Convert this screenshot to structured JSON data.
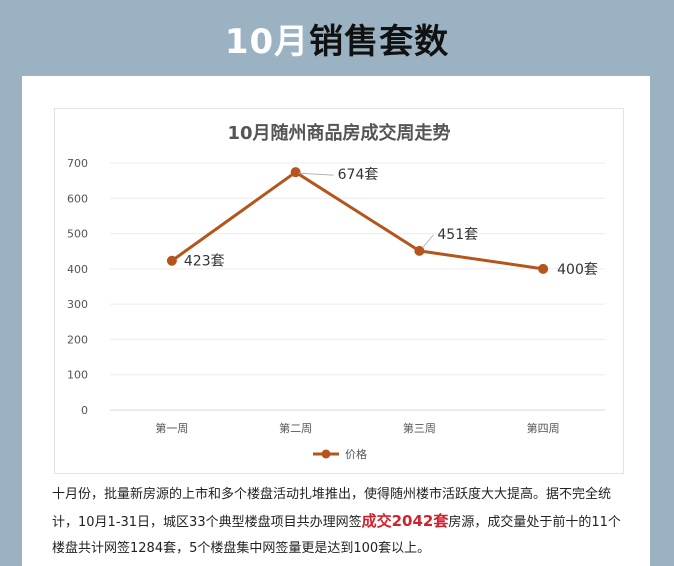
{
  "header": {
    "title_highlight": "10月",
    "title_rest": "销售套数"
  },
  "chart_data": {
    "type": "line",
    "title": "10月随州商品房成交周走势",
    "categories": [
      "第一周",
      "第二周",
      "第三周",
      "第四周"
    ],
    "series": [
      {
        "name": "价格",
        "values": [
          423,
          674,
          451,
          400
        ],
        "color": "#b5541c"
      }
    ],
    "data_labels": [
      "423套",
      "674套",
      "451套",
      "400套"
    ],
    "ylim": [
      0,
      700
    ],
    "y_ticks": [
      0,
      100,
      200,
      300,
      400,
      500,
      600,
      700
    ],
    "grid": true,
    "legend_position": "bottom"
  },
  "body_text": {
    "part1": "十月份，批量新房源的上市和多个楼盘活动扎堆推出，使得随州楼市活跃度大大提高。据不完全统计，10月1-31日，城区33个典型楼盘项目共办理网签",
    "highlight": "成交2042套",
    "part2": "房源，成交量处于前十的11个楼盘共计网签1284套，5个楼盘集中网签量更是达到100套以上。"
  }
}
